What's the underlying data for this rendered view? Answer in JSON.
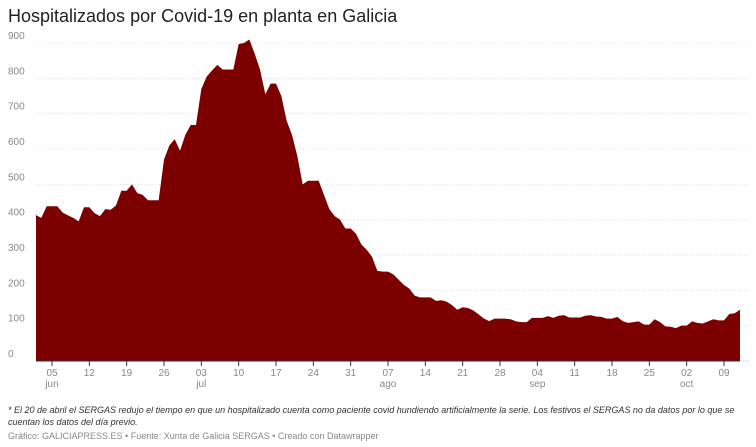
{
  "chart_data": {
    "type": "area",
    "title": "Hospitalizados por Covid-19 en planta en Galicia",
    "note": "* El 20 de abril el SERGAS redujo el tiempo en que un hospitalizado cuenta como paciente covid hundiendo artificialmente la serie. Los festivos el SERGAS no da datos por lo que se cuentan los datos del día previo.",
    "source": "Gráfico: GALICIAPRESS.ES • Fuente: Xunta de Galicia SERGAS • Creado con Datawrapper",
    "color": "#7d0000",
    "x": [
      "06-02",
      "06-03",
      "06-04",
      "06-05",
      "06-06",
      "06-07",
      "06-08",
      "06-09",
      "06-10",
      "06-11",
      "06-12",
      "06-13",
      "06-14",
      "06-15",
      "06-16",
      "06-17",
      "06-18",
      "06-19",
      "06-20",
      "06-21",
      "06-22",
      "06-23",
      "06-24",
      "06-25",
      "06-26",
      "06-27",
      "06-28",
      "06-29",
      "06-30",
      "07-01",
      "07-02",
      "07-03",
      "07-04",
      "07-05",
      "07-06",
      "07-07",
      "07-08",
      "07-09",
      "07-10",
      "07-11",
      "07-12",
      "07-13",
      "07-14",
      "07-15",
      "07-16",
      "07-17",
      "07-18",
      "07-19",
      "07-20",
      "07-21",
      "07-22",
      "07-23",
      "07-24",
      "07-25",
      "07-26",
      "07-27",
      "07-28",
      "07-29",
      "07-30",
      "07-31",
      "08-01",
      "08-02",
      "08-03",
      "08-04",
      "08-05",
      "08-06",
      "08-07",
      "08-08",
      "08-09",
      "08-10",
      "08-11",
      "08-12",
      "08-13",
      "08-14",
      "08-15",
      "08-16",
      "08-17",
      "08-18",
      "08-19",
      "08-20",
      "08-21",
      "08-22",
      "08-23",
      "08-24",
      "08-25",
      "08-26",
      "08-27",
      "08-28",
      "08-29",
      "08-30",
      "08-31",
      "09-01",
      "09-02",
      "09-03",
      "09-04",
      "09-05",
      "09-06",
      "09-07",
      "09-08",
      "09-09",
      "09-10",
      "09-11",
      "09-12",
      "09-13",
      "09-14",
      "09-15",
      "09-16",
      "09-17",
      "09-18",
      "09-19",
      "09-20",
      "09-21",
      "09-22",
      "09-23",
      "09-24",
      "09-25",
      "09-26",
      "09-27",
      "09-28",
      "09-29",
      "09-30",
      "10-01",
      "10-02",
      "10-03",
      "10-04",
      "10-05",
      "10-06",
      "10-07",
      "10-08",
      "10-09",
      "10-10",
      "10-11",
      "10-12"
    ],
    "values": [
      413,
      405,
      438,
      438,
      438,
      420,
      412,
      405,
      395,
      435,
      435,
      418,
      410,
      430,
      428,
      440,
      482,
      482,
      500,
      475,
      470,
      455,
      455,
      455,
      570,
      610,
      628,
      595,
      640,
      668,
      668,
      770,
      805,
      822,
      838,
      825,
      825,
      825,
      897,
      900,
      910,
      870,
      825,
      755,
      785,
      785,
      750,
      680,
      640,
      580,
      500,
      510,
      510,
      510,
      470,
      430,
      410,
      400,
      375,
      375,
      360,
      330,
      315,
      295,
      255,
      253,
      253,
      245,
      230,
      215,
      205,
      185,
      180,
      180,
      180,
      170,
      172,
      168,
      158,
      145,
      152,
      150,
      143,
      132,
      120,
      113,
      120,
      120,
      120,
      118,
      112,
      110,
      110,
      122,
      122,
      122,
      127,
      122,
      128,
      130,
      123,
      123,
      123,
      128,
      130,
      126,
      125,
      120,
      120,
      125,
      113,
      108,
      110,
      112,
      103,
      103,
      118,
      110,
      98,
      97,
      93,
      100,
      100,
      112,
      108,
      106,
      112,
      118,
      115,
      115,
      133,
      135,
      145
    ],
    "ylim": [
      0,
      900
    ],
    "yticks": [
      0,
      100,
      200,
      300,
      400,
      500,
      600,
      700,
      800,
      900
    ],
    "grid": true,
    "xticks": [
      {
        "value": "06-05",
        "label": "05"
      },
      {
        "value": "06-12",
        "label": "12"
      },
      {
        "value": "06-19",
        "label": "19"
      },
      {
        "value": "06-26",
        "label": "26"
      },
      {
        "value": "07-03",
        "label": "03"
      },
      {
        "value": "07-10",
        "label": "10"
      },
      {
        "value": "07-17",
        "label": "17"
      },
      {
        "value": "07-24",
        "label": "24"
      },
      {
        "value": "07-31",
        "label": "31"
      },
      {
        "value": "08-07",
        "label": "07"
      },
      {
        "value": "08-14",
        "label": "14"
      },
      {
        "value": "08-21",
        "label": "21"
      },
      {
        "value": "08-28",
        "label": "28"
      },
      {
        "value": "09-04",
        "label": "04"
      },
      {
        "value": "09-11",
        "label": "11"
      },
      {
        "value": "09-18",
        "label": "18"
      },
      {
        "value": "09-25",
        "label": "25"
      },
      {
        "value": "10-02",
        "label": "02"
      },
      {
        "value": "10-09",
        "label": "09"
      }
    ],
    "month_labels": [
      {
        "value": "06-05",
        "label": "jun"
      },
      {
        "value": "07-03",
        "label": "jul"
      },
      {
        "value": "08-07",
        "label": "ago"
      },
      {
        "value": "09-04",
        "label": "sep"
      },
      {
        "value": "10-02",
        "label": "oct"
      }
    ]
  }
}
